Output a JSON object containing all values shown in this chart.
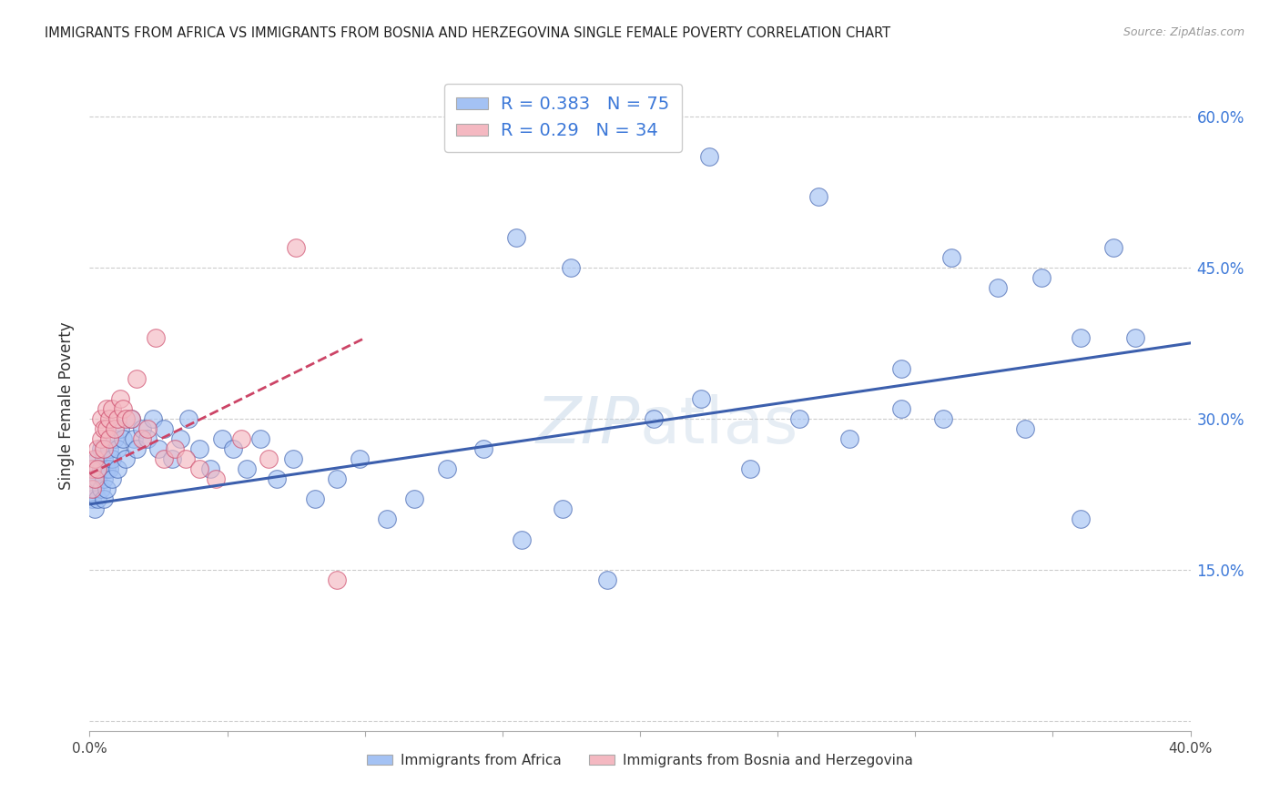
{
  "title": "IMMIGRANTS FROM AFRICA VS IMMIGRANTS FROM BOSNIA AND HERZEGOVINA SINGLE FEMALE POVERTY CORRELATION CHART",
  "source": "Source: ZipAtlas.com",
  "ylabel": "Single Female Poverty",
  "y_tick_vals": [
    0.0,
    0.15,
    0.3,
    0.45,
    0.6
  ],
  "y_tick_labels": [
    "",
    "15.0%",
    "30.0%",
    "45.0%",
    "60.0%"
  ],
  "xlim": [
    0.0,
    0.4
  ],
  "ylim": [
    -0.01,
    0.635
  ],
  "africa_R": 0.383,
  "africa_N": 75,
  "bosnia_R": 0.29,
  "bosnia_N": 34,
  "africa_color": "#a4c2f4",
  "bosnia_color": "#f4b8c1",
  "africa_line_color": "#3c5fad",
  "bosnia_line_color": "#cc4466",
  "watermark": "ZIPatlas",
  "africa_x": [
    0.001,
    0.001,
    0.002,
    0.002,
    0.002,
    0.003,
    0.003,
    0.003,
    0.004,
    0.004,
    0.004,
    0.005,
    0.005,
    0.005,
    0.006,
    0.006,
    0.007,
    0.007,
    0.008,
    0.008,
    0.009,
    0.01,
    0.01,
    0.011,
    0.012,
    0.013,
    0.015,
    0.016,
    0.017,
    0.019,
    0.021,
    0.023,
    0.025,
    0.027,
    0.03,
    0.033,
    0.036,
    0.04,
    0.044,
    0.048,
    0.052,
    0.057,
    0.062,
    0.068,
    0.074,
    0.082,
    0.09,
    0.098,
    0.108,
    0.118,
    0.13,
    0.143,
    0.157,
    0.172,
    0.188,
    0.205,
    0.222,
    0.24,
    0.258,
    0.276,
    0.295,
    0.313,
    0.33,
    0.346,
    0.36,
    0.372,
    0.38,
    0.225,
    0.265,
    0.295,
    0.31,
    0.155,
    0.175,
    0.34,
    0.36
  ],
  "africa_y": [
    0.24,
    0.22,
    0.25,
    0.23,
    0.21,
    0.24,
    0.26,
    0.22,
    0.23,
    0.25,
    0.27,
    0.24,
    0.22,
    0.26,
    0.25,
    0.23,
    0.27,
    0.25,
    0.26,
    0.24,
    0.28,
    0.27,
    0.25,
    0.29,
    0.28,
    0.26,
    0.3,
    0.28,
    0.27,
    0.29,
    0.28,
    0.3,
    0.27,
    0.29,
    0.26,
    0.28,
    0.3,
    0.27,
    0.25,
    0.28,
    0.27,
    0.25,
    0.28,
    0.24,
    0.26,
    0.22,
    0.24,
    0.26,
    0.2,
    0.22,
    0.25,
    0.27,
    0.18,
    0.21,
    0.14,
    0.3,
    0.32,
    0.25,
    0.3,
    0.28,
    0.35,
    0.46,
    0.43,
    0.44,
    0.38,
    0.47,
    0.38,
    0.56,
    0.52,
    0.31,
    0.3,
    0.48,
    0.45,
    0.29,
    0.2
  ],
  "bosnia_x": [
    0.001,
    0.001,
    0.002,
    0.002,
    0.003,
    0.003,
    0.004,
    0.004,
    0.005,
    0.005,
    0.006,
    0.006,
    0.007,
    0.007,
    0.008,
    0.009,
    0.01,
    0.011,
    0.012,
    0.013,
    0.015,
    0.017,
    0.019,
    0.021,
    0.024,
    0.027,
    0.031,
    0.035,
    0.04,
    0.046,
    0.055,
    0.065,
    0.075,
    0.09
  ],
  "bosnia_y": [
    0.25,
    0.23,
    0.26,
    0.24,
    0.27,
    0.25,
    0.3,
    0.28,
    0.29,
    0.27,
    0.31,
    0.29,
    0.3,
    0.28,
    0.31,
    0.29,
    0.3,
    0.32,
    0.31,
    0.3,
    0.3,
    0.34,
    0.28,
    0.29,
    0.38,
    0.26,
    0.27,
    0.26,
    0.25,
    0.24,
    0.28,
    0.26,
    0.47,
    0.14
  ],
  "africa_line_x": [
    0.0,
    0.4
  ],
  "africa_line_y": [
    0.215,
    0.375
  ],
  "bosnia_line_x": [
    0.0,
    0.1
  ],
  "bosnia_line_y": [
    0.245,
    0.38
  ]
}
